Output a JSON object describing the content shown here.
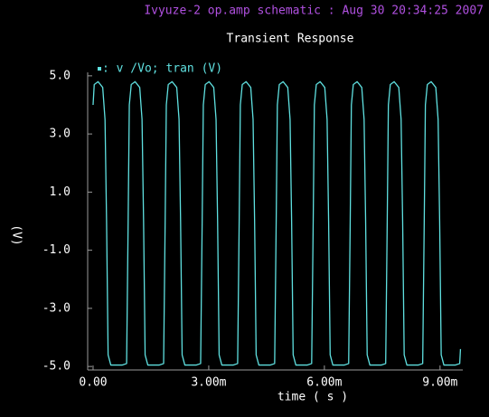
{
  "chart_data": {
    "type": "line",
    "header": "Ivyuze-2 op.amp schematic : Aug 30 20:34:25 2007",
    "title": "Transient Response",
    "x_label": "time ( s )",
    "y_label": "(V)",
    "x": [
      0,
      3e-05,
      0.00013,
      0.00025,
      0.00031,
      0.00035,
      0.00039,
      0.00046,
      0.00076,
      0.00087,
      0.00091,
      0.00094,
      0.00099,
      0.00109,
      0.00121,
      0.00127,
      0.00131,
      0.00135,
      0.00142,
      0.00172,
      0.00183,
      0.00187,
      0.0019,
      0.00195,
      0.00205,
      0.00217,
      0.00223,
      0.00227,
      0.00231,
      0.00238,
      0.00268,
      0.00279,
      0.00283,
      0.00286,
      0.00291,
      0.00301,
      0.00313,
      0.00319,
      0.00323,
      0.00327,
      0.00334,
      0.00364,
      0.00375,
      0.00379,
      0.00382,
      0.00387,
      0.00397,
      0.00409,
      0.00415,
      0.00419,
      0.00423,
      0.0043,
      0.0046,
      0.00471,
      0.00475,
      0.00478,
      0.00483,
      0.00493,
      0.00505,
      0.00511,
      0.00515,
      0.00519,
      0.00526,
      0.00556,
      0.00567,
      0.00571,
      0.00574,
      0.00579,
      0.00589,
      0.00601,
      0.00607,
      0.00611,
      0.00615,
      0.00622,
      0.00652,
      0.00663,
      0.00667,
      0.0067,
      0.00675,
      0.00685,
      0.00697,
      0.00703,
      0.00707,
      0.00711,
      0.00718,
      0.00748,
      0.00759,
      0.00763,
      0.00766,
      0.00771,
      0.00781,
      0.00793,
      0.00799,
      0.00803,
      0.00807,
      0.00814,
      0.00844,
      0.00855,
      0.00859,
      0.00862,
      0.00867,
      0.00877,
      0.00889,
      0.00895,
      0.00899,
      0.00903,
      0.0091,
      0.0094,
      0.00951,
      0.00953
    ],
    "series": [
      {
        "name": ": v /Vo; tran (V)",
        "color": "#5fe0e0",
        "values": [
          4.0,
          4.7,
          4.8,
          4.6,
          3.5,
          0,
          -4.6,
          -4.95,
          -4.95,
          -4.9,
          0,
          4.0,
          4.7,
          4.8,
          4.6,
          3.5,
          0,
          -4.6,
          -4.95,
          -4.95,
          -4.9,
          0,
          4.0,
          4.7,
          4.8,
          4.6,
          3.5,
          0,
          -4.6,
          -4.95,
          -4.95,
          -4.9,
          0,
          4.0,
          4.7,
          4.8,
          4.6,
          3.5,
          0,
          -4.6,
          -4.95,
          -4.95,
          -4.9,
          0,
          4.0,
          4.7,
          4.8,
          4.6,
          3.5,
          0,
          -4.6,
          -4.95,
          -4.95,
          -4.9,
          0,
          4.0,
          4.7,
          4.8,
          4.6,
          3.5,
          0,
          -4.6,
          -4.95,
          -4.95,
          -4.9,
          0,
          4.0,
          4.7,
          4.8,
          4.6,
          3.5,
          0,
          -4.6,
          -4.95,
          -4.95,
          -4.9,
          0,
          4.0,
          4.7,
          4.8,
          4.6,
          3.5,
          0,
          -4.6,
          -4.95,
          -4.95,
          -4.9,
          0,
          4.0,
          4.7,
          4.8,
          4.6,
          3.5,
          0,
          -4.6,
          -4.95,
          -4.95,
          -4.9,
          0,
          4.0,
          4.7,
          4.8,
          4.6,
          3.5,
          0,
          -4.6,
          -4.95,
          -4.95,
          -4.9,
          -4.4
        ]
      }
    ],
    "xlim": [
      -0.00014,
      0.00959
    ],
    "ylim": [
      -5.12,
      5.12
    ],
    "xticks": [
      {
        "value": 0,
        "label": "0.00"
      },
      {
        "value": 0.003,
        "label": "3.00m"
      },
      {
        "value": 0.006,
        "label": "6.00m"
      },
      {
        "value": 0.009,
        "label": "9.00m"
      }
    ],
    "yticks": [
      {
        "value": 5,
        "label": "5.0"
      },
      {
        "value": 3,
        "label": "3.0"
      },
      {
        "value": 1,
        "label": "1.0"
      },
      {
        "value": -1,
        "label": "-1.0"
      },
      {
        "value": -3,
        "label": "-3.0"
      },
      {
        "value": -5,
        "label": "-5.0"
      }
    ],
    "grid": false
  }
}
